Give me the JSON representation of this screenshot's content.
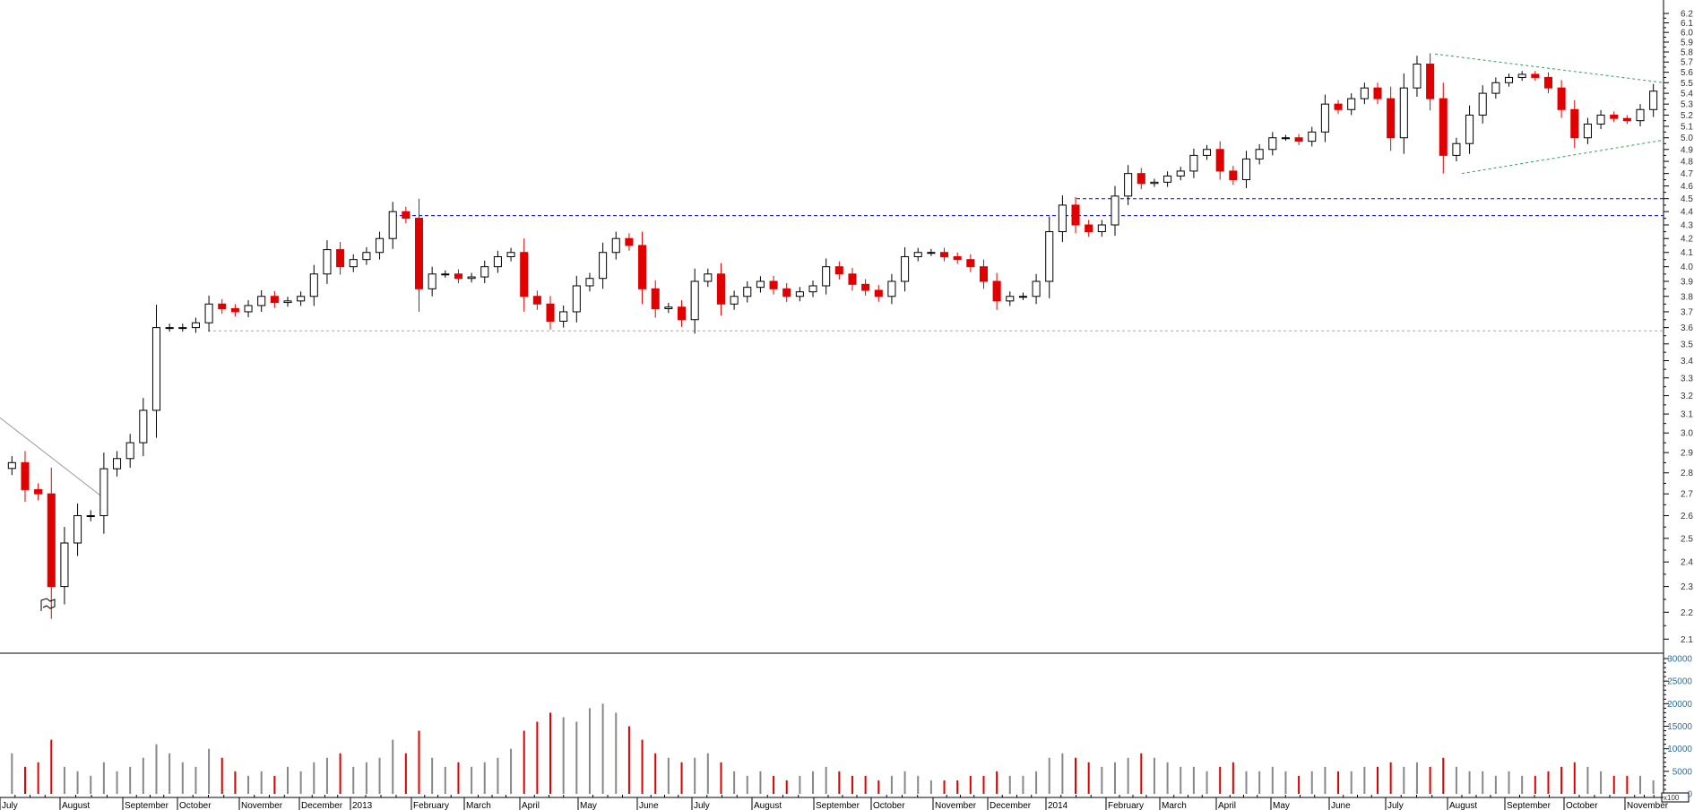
{
  "chart_data": {
    "type": "candlestick",
    "price_axis": {
      "scale": "log",
      "range": [
        2.1,
        6.2
      ],
      "step": 0.1,
      "position": "right"
    },
    "volume_axis": {
      "range": [
        0,
        30000
      ],
      "ticks": [
        0,
        5000,
        10000,
        15000,
        20000,
        25000,
        30000
      ],
      "unit_label": "x100"
    },
    "x_axis_labels": [
      "July",
      "August",
      "September",
      "October",
      "November",
      "December",
      "2013",
      "February",
      "March",
      "April",
      "May",
      "June",
      "July",
      "August",
      "September",
      "October",
      "November",
      "December",
      "2014",
      "February",
      "March",
      "April",
      "May",
      "June",
      "July",
      "August",
      "September",
      "October",
      "November"
    ],
    "x_start": "2012-07",
    "interval": "weekly",
    "close": [
      2.85,
      2.72,
      2.7,
      2.3,
      2.48,
      2.6,
      2.6,
      2.82,
      2.87,
      2.95,
      3.12,
      3.6,
      3.6,
      3.6,
      3.63,
      3.75,
      3.72,
      3.7,
      3.74,
      3.8,
      3.76,
      3.77,
      3.8,
      3.95,
      4.12,
      4.0,
      4.05,
      4.1,
      4.2,
      4.4,
      4.35,
      3.85,
      3.95,
      3.95,
      3.92,
      3.93,
      4.0,
      4.07,
      4.1,
      3.8,
      3.75,
      3.64,
      3.7,
      3.87,
      3.92,
      4.1,
      4.2,
      4.15,
      3.85,
      3.72,
      3.73,
      3.65,
      3.9,
      3.95,
      3.75,
      3.8,
      3.86,
      3.9,
      3.85,
      3.8,
      3.83,
      3.87,
      4.0,
      3.95,
      3.88,
      3.84,
      3.8,
      3.9,
      4.07,
      4.1,
      4.1,
      4.07,
      4.05,
      4.0,
      3.9,
      3.77,
      3.8,
      3.8,
      3.9,
      4.25,
      4.45,
      4.3,
      4.25,
      4.3,
      4.52,
      4.7,
      4.62,
      4.63,
      4.68,
      4.72,
      4.85,
      4.9,
      4.72,
      4.65,
      4.82,
      4.9,
      5.0,
      5.0,
      4.97,
      5.05,
      5.3,
      5.25,
      5.35,
      5.45,
      5.35,
      5.0,
      5.45,
      5.68,
      5.35,
      4.85,
      4.95,
      5.2,
      5.4,
      5.5,
      5.55,
      5.58,
      5.55,
      5.45,
      5.25,
      5.0,
      5.12,
      5.2,
      5.17,
      5.15,
      5.25,
      5.42
    ],
    "volume": [
      9000,
      6000,
      7000,
      12000,
      6000,
      5000,
      4000,
      7000,
      5000,
      6000,
      8000,
      11000,
      9000,
      7000,
      6000,
      10000,
      8000,
      5000,
      4000,
      5000,
      4000,
      6000,
      5000,
      7000,
      8000,
      9000,
      6000,
      7000,
      8000,
      12000,
      9000,
      14000,
      8000,
      6000,
      7000,
      6000,
      7000,
      8000,
      10000,
      14000,
      16000,
      18000,
      17000,
      16000,
      19000,
      20000,
      18000,
      15000,
      12000,
      9000,
      8000,
      7000,
      8000,
      9000,
      7000,
      5000,
      4000,
      5000,
      4000,
      3000,
      4000,
      5000,
      6000,
      5000,
      4000,
      4000,
      3000,
      4000,
      5000,
      4000,
      3000,
      3000,
      3000,
      4000,
      4000,
      5000,
      4000,
      4000,
      5000,
      8000,
      9000,
      8000,
      7000,
      6000,
      7000,
      8000,
      9000,
      8000,
      7000,
      6000,
      6000,
      5000,
      6000,
      7000,
      5000,
      5000,
      6000,
      5000,
      4000,
      5000,
      6000,
      5000,
      5000,
      6000,
      6000,
      7000,
      6000,
      7000,
      6000,
      8000,
      6000,
      5000,
      5000,
      4000,
      5000,
      4000,
      4000,
      5000,
      6000,
      7000,
      6000,
      5000,
      4000,
      4000,
      4000,
      3000
    ],
    "support_resistance": [
      {
        "kind": "horizontal",
        "price": 4.37,
        "style": "dashed",
        "color": "#0000ff"
      },
      {
        "kind": "horizontal",
        "price": 4.5,
        "style": "dashed",
        "color": "#0000ff"
      },
      {
        "kind": "horizontal",
        "price": 3.58,
        "style": "dashed",
        "color": "#aaaaaa"
      },
      {
        "kind": "triangle-upper",
        "from_price": 5.78,
        "to_price": 5.5,
        "color": "#2ca05a"
      },
      {
        "kind": "triangle-lower",
        "from_price": 4.7,
        "to_price": 4.98,
        "color": "#2ca05a"
      },
      {
        "kind": "downtrend",
        "from_price": 3.08,
        "to_price": 2.67,
        "color": "#999999"
      }
    ],
    "colors": {
      "up": "#000000",
      "down": "#e00000",
      "volume_up": "#888888",
      "volume_down": "#e00000"
    },
    "grid": false
  }
}
